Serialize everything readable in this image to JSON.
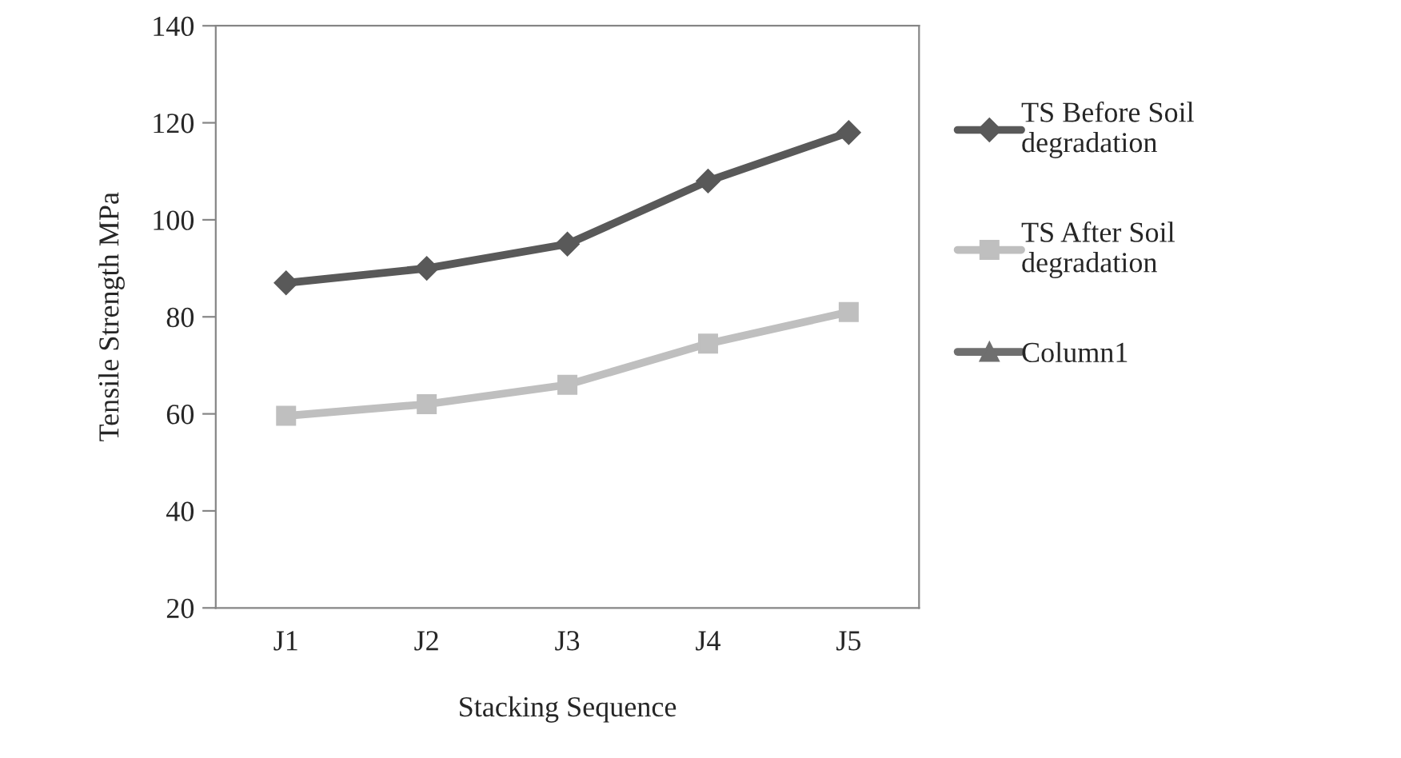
{
  "chart_data": {
    "type": "line",
    "xlabel": "Stacking Sequence",
    "ylabel": "Tensile Strength MPa",
    "categories": [
      "J1",
      "J2",
      "J3",
      "J4",
      "J5"
    ],
    "series": [
      {
        "name": "TS Before Soil degradation",
        "color": "#595959",
        "marker": "diamond",
        "values": [
          87,
          90,
          95,
          108,
          118
        ]
      },
      {
        "name": "TS After Soil degradation",
        "color": "#bfbfbf",
        "marker": "square",
        "values": [
          59.6,
          62,
          66,
          74.5,
          81
        ]
      },
      {
        "name": "Column1",
        "color": "#6f6f6f",
        "marker": "triangle",
        "values": [
          null,
          null,
          null,
          null,
          null
        ]
      }
    ],
    "ylim": [
      20,
      140
    ],
    "yticks": [
      20,
      40,
      60,
      80,
      100,
      120,
      140
    ],
    "grid": false,
    "legend": "right",
    "line_style": "solid"
  }
}
